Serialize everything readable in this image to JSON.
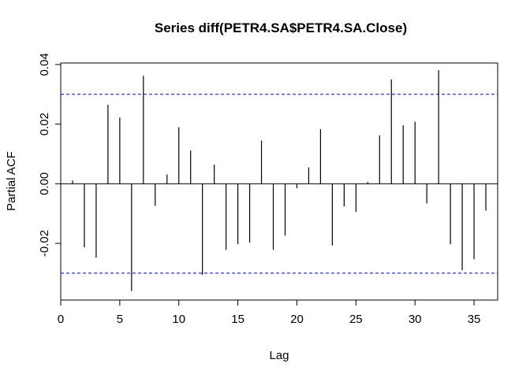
{
  "chart_data": {
    "type": "bar",
    "title": "Series  diff(PETR4.SA$PETR4.SA.Close)",
    "xlabel": "Lag",
    "ylabel": "Partial ACF",
    "xlim": [
      0,
      37
    ],
    "ylim": [
      -0.039,
      0.0405
    ],
    "xticks": [
      0,
      5,
      10,
      15,
      20,
      25,
      30,
      35
    ],
    "xtick_labels": [
      "0",
      "5",
      "10",
      "15",
      "20",
      "25",
      "30",
      "35"
    ],
    "yticks": [
      -0.02,
      0.0,
      0.02,
      0.04
    ],
    "ytick_labels": [
      "-0.02",
      "0.00",
      "0.02",
      "0.04"
    ],
    "x": [
      1,
      2,
      3,
      4,
      5,
      6,
      7,
      8,
      9,
      10,
      11,
      12,
      13,
      14,
      15,
      16,
      17,
      18,
      19,
      20,
      21,
      22,
      23,
      24,
      25,
      26,
      27,
      28,
      29,
      30,
      31,
      32,
      33,
      34,
      35,
      36
    ],
    "values": [
      0.0011,
      -0.0213,
      -0.0248,
      0.0265,
      0.0222,
      -0.036,
      0.0362,
      -0.0074,
      0.0031,
      0.019,
      0.0111,
      -0.0305,
      0.0064,
      -0.0222,
      -0.0203,
      -0.0197,
      0.0145,
      -0.0222,
      -0.0174,
      -0.0015,
      0.0055,
      0.0183,
      -0.0207,
      -0.0076,
      -0.0094,
      0.0006,
      0.0162,
      0.035,
      0.0196,
      0.0208,
      -0.0066,
      0.0381,
      -0.0203,
      -0.029,
      -0.0253,
      -0.009
    ],
    "confidence_bound": 0.03,
    "grid": false,
    "colors": {
      "bars": "#000000",
      "bounds": "#0000cc",
      "zero_line": "#000000"
    }
  }
}
